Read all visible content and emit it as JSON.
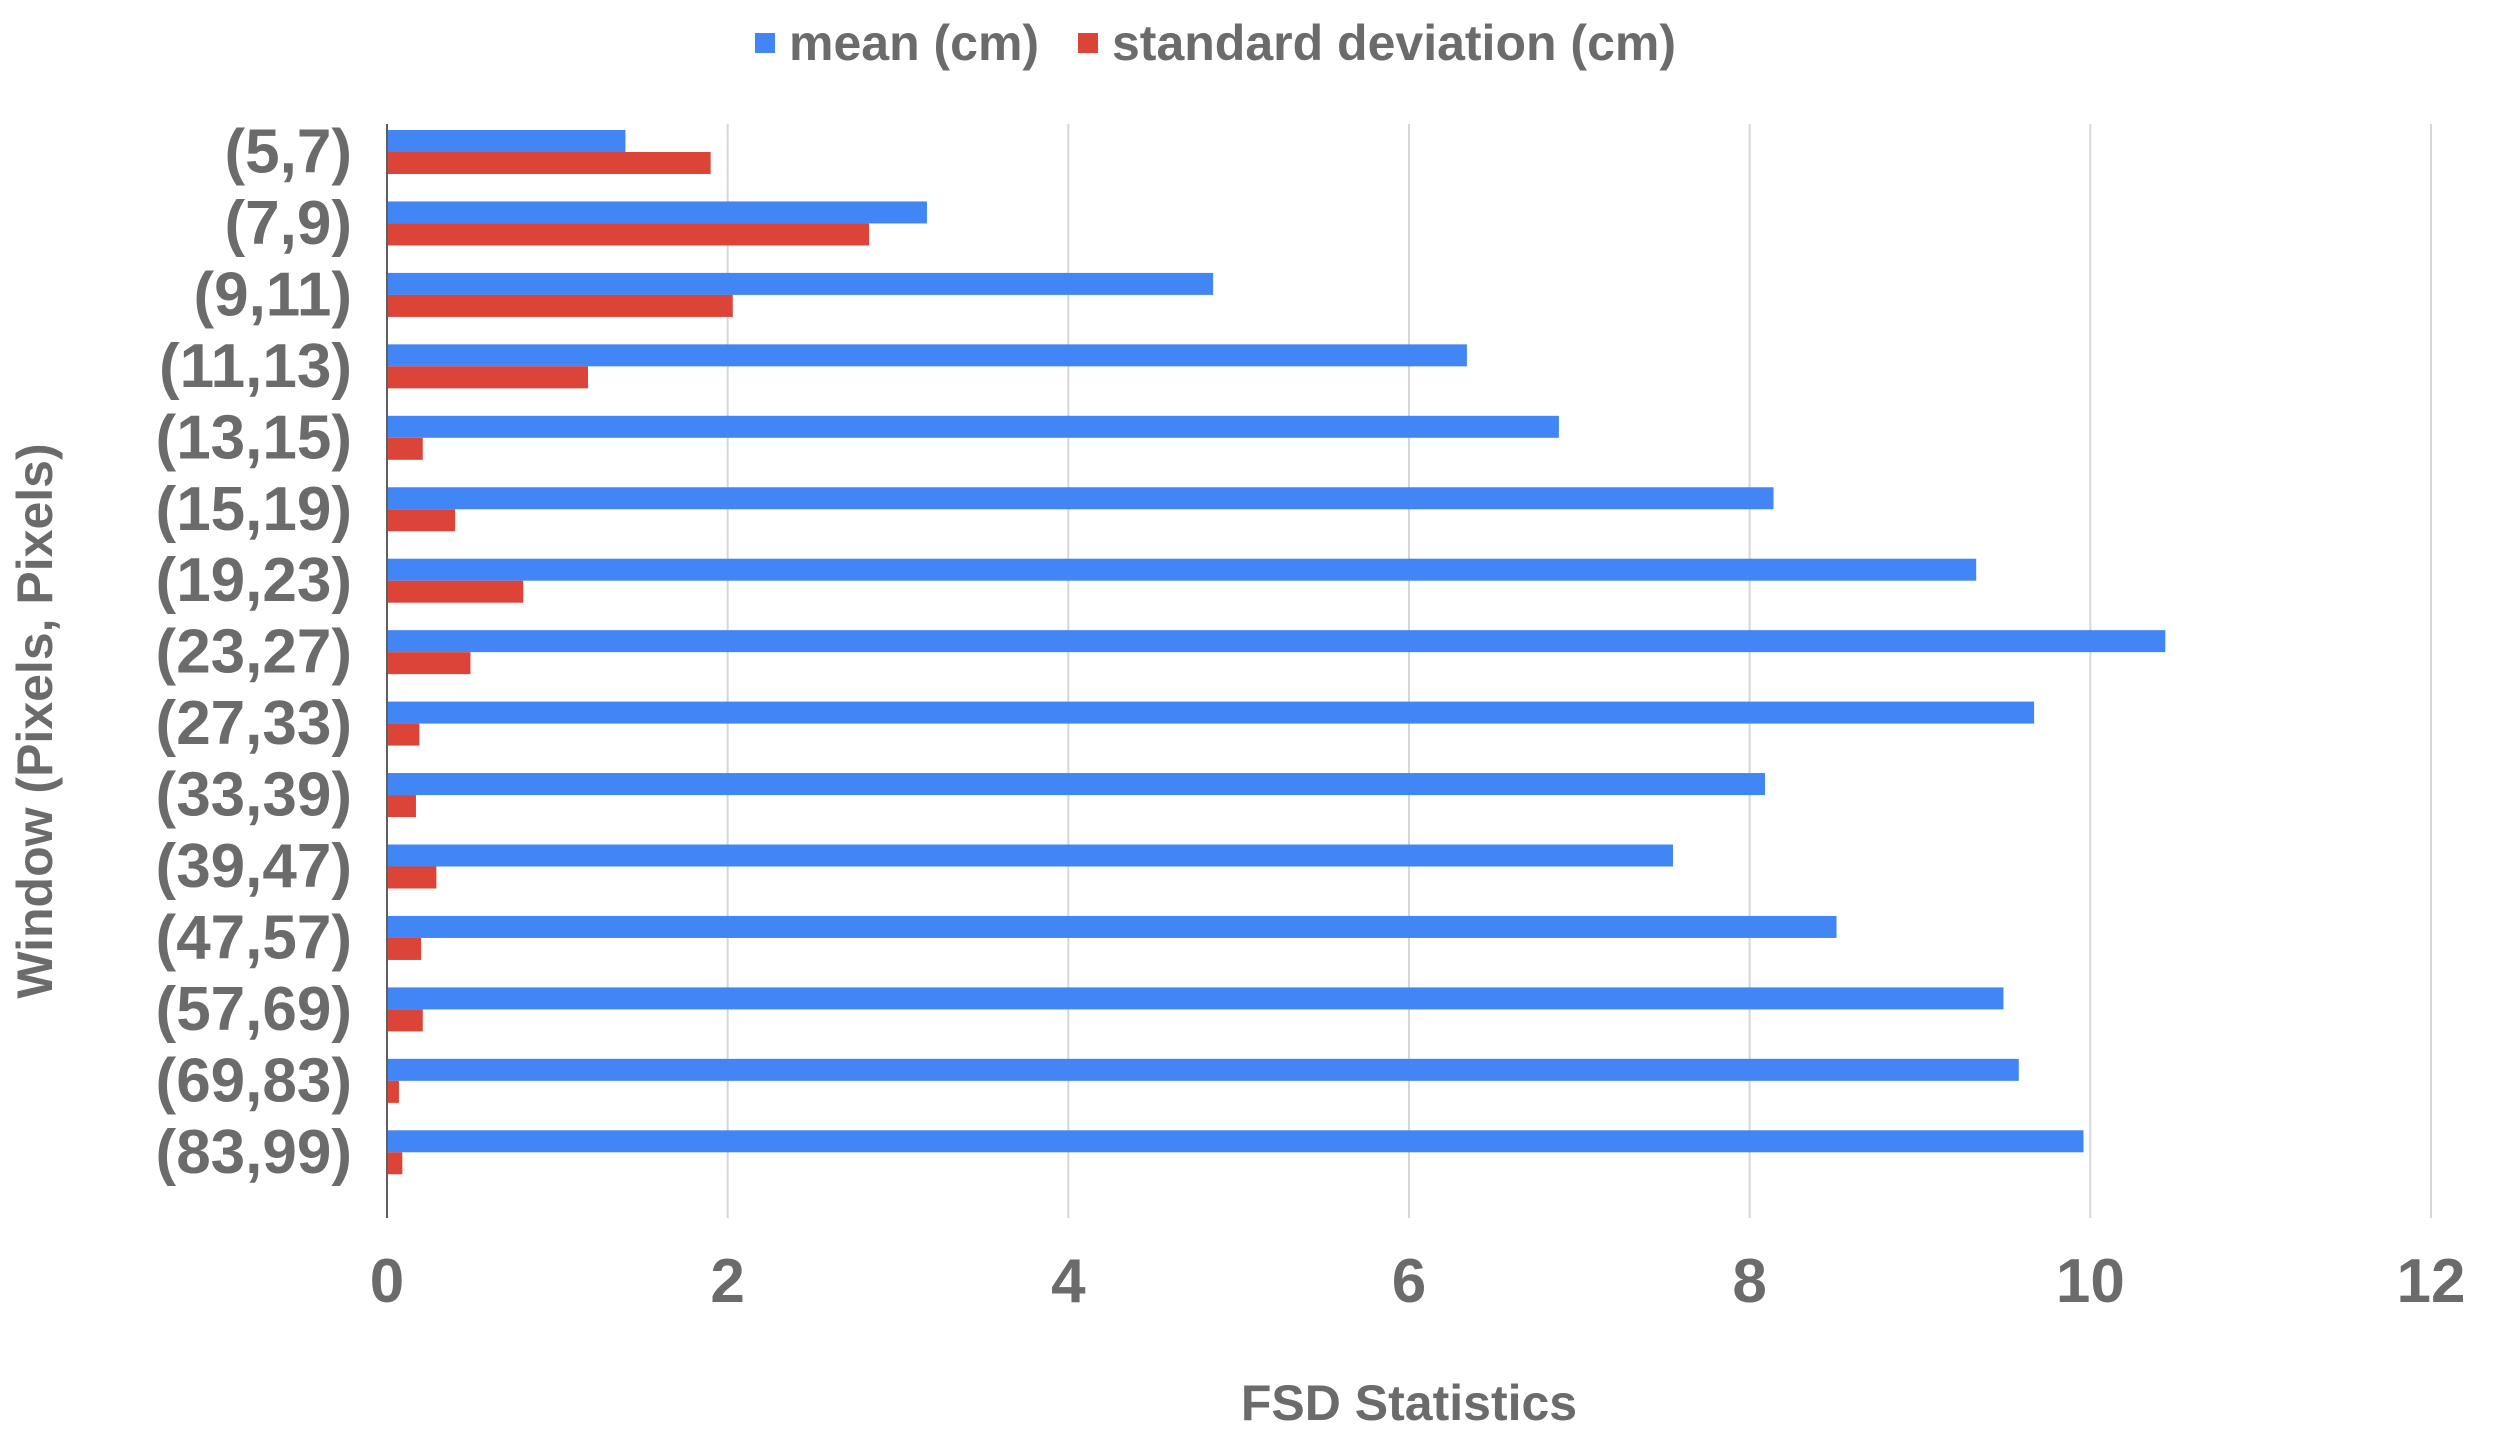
{
  "chart_data": {
    "type": "bar",
    "orientation": "horizontal",
    "categories": [
      "(5,7)",
      "(7,9)",
      "(9,11)",
      "(11,13)",
      "(13,15)",
      "(15,19)",
      "(19,23)",
      "(23,27)",
      "(27,33)",
      "(33,39)",
      "(39,47)",
      "(47,57)",
      "(57,69)",
      "(69,83)",
      "(83,99)"
    ],
    "series": [
      {
        "name": "mean (cm)",
        "color": "#4285f4",
        "values": [
          1.4,
          3.17,
          4.85,
          6.34,
          6.88,
          8.14,
          9.33,
          10.44,
          9.67,
          8.09,
          7.55,
          8.51,
          9.49,
          9.58,
          9.96
        ]
      },
      {
        "name": "standard deviation (cm)",
        "color": "#db4437",
        "values": [
          1.9,
          2.83,
          2.03,
          1.18,
          0.21,
          0.4,
          0.8,
          0.49,
          0.19,
          0.17,
          0.29,
          0.2,
          0.21,
          0.07,
          0.09
        ]
      }
    ],
    "xlabel": "FSD Statistics",
    "ylabel": "Window (Pixels, Pixels)",
    "xlim": [
      0,
      12
    ],
    "xticks": [
      "0",
      "2",
      "4",
      "6",
      "8",
      "10",
      "12"
    ],
    "grid": "vertical",
    "legend": "top-center"
  }
}
